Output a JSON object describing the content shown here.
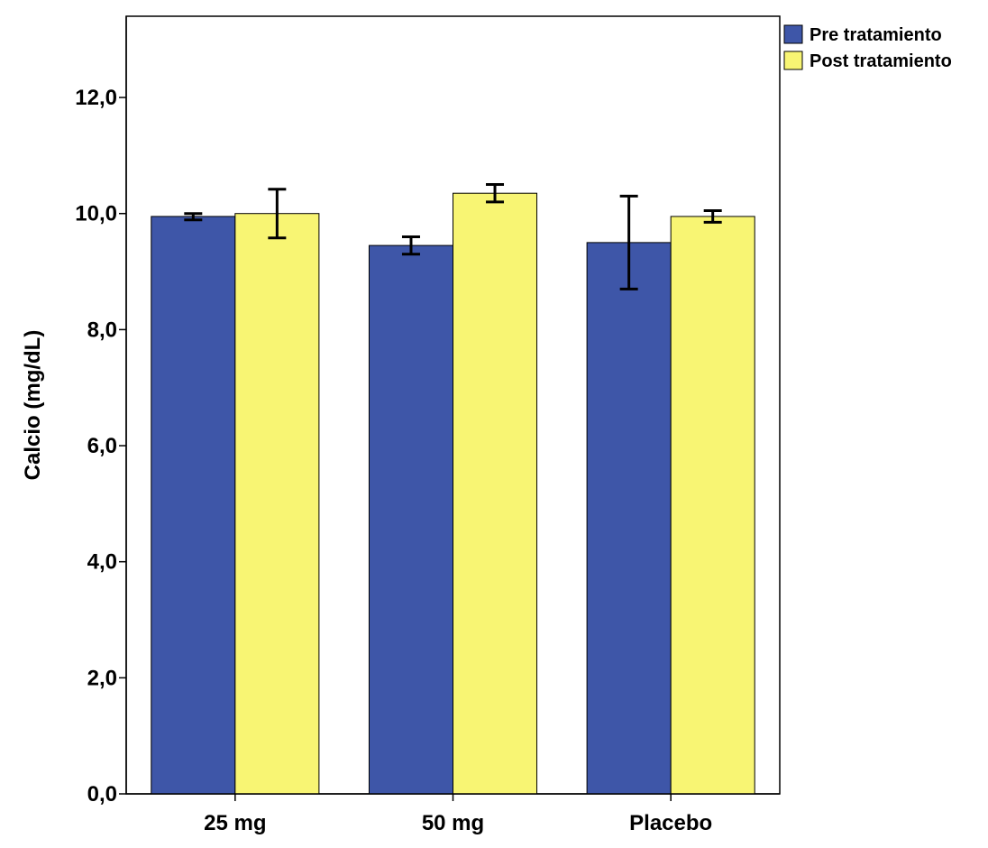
{
  "chart_data": {
    "type": "bar",
    "title": "",
    "xlabel": "",
    "ylabel": "Calcio (mg/dL)",
    "categories": [
      "25 mg",
      "50 mg",
      "Placebo"
    ],
    "ylim": [
      0,
      13.4
    ],
    "yticks": [
      {
        "value": 0,
        "label": "0,0"
      },
      {
        "value": 2,
        "label": "2,0"
      },
      {
        "value": 4,
        "label": "4,0"
      },
      {
        "value": 6,
        "label": "6,0"
      },
      {
        "value": 8,
        "label": "8,0"
      },
      {
        "value": 10,
        "label": "10,0"
      },
      {
        "value": 12,
        "label": "12,0"
      }
    ],
    "grid": false,
    "legend_position": "top-right",
    "series": [
      {
        "name": "Pre tratamiento",
        "color": "#3e56a8",
        "values": [
          9.95,
          9.45,
          9.5
        ],
        "error_low": [
          9.89,
          9.3,
          8.7
        ],
        "error_high": [
          10.0,
          9.6,
          10.3
        ]
      },
      {
        "name": "Post tratamiento",
        "color": "#f8f573",
        "values": [
          10.0,
          10.35,
          9.95
        ],
        "error_low": [
          9.58,
          10.2,
          9.85
        ],
        "error_high": [
          10.42,
          10.5,
          10.05
        ]
      }
    ]
  }
}
